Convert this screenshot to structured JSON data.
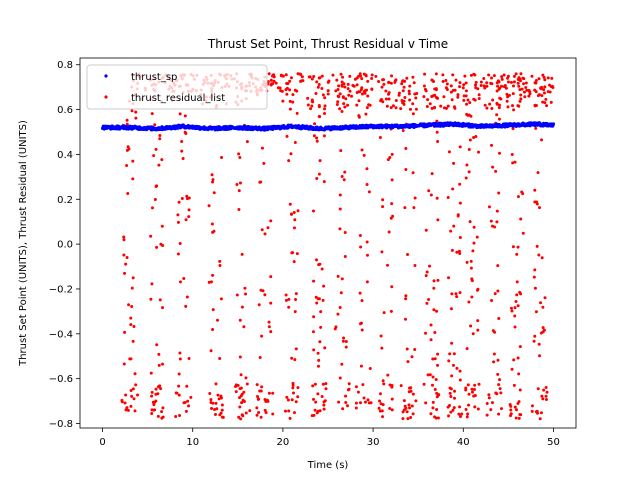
{
  "chart_data": {
    "type": "scatter",
    "title": "Thrust Set Point, Thrust Residual v Time",
    "xlabel": "Time (s)",
    "ylabel": "Thrust Set Point (UNITS), Thrust Residual (UNITS)",
    "xlim": [
      -2.5,
      52.5
    ],
    "ylim": [
      -0.82,
      0.83
    ],
    "xticks": [
      0,
      10,
      20,
      30,
      40,
      50
    ],
    "xtick_labels": [
      "0",
      "10",
      "20",
      "30",
      "40",
      "50"
    ],
    "yticks": [
      -0.8,
      -0.6,
      -0.4,
      -0.2,
      0.0,
      0.2,
      0.4,
      0.6,
      0.8
    ],
    "ytick_labels": [
      "−0.8",
      "−0.6",
      "−0.4",
      "−0.2",
      "0.0",
      "0.2",
      "0.4",
      "0.6",
      "0.8"
    ],
    "legend_position": "top-left",
    "series": [
      {
        "name": "thrust_sp",
        "color": "#0000ff",
        "marker": "dot",
        "x_range": [
          0,
          50
        ],
        "baseline": [
          [
            0,
            0.52
          ],
          [
            3,
            0.52
          ],
          [
            6,
            0.515
          ],
          [
            9,
            0.525
          ],
          [
            12,
            0.515
          ],
          [
            15,
            0.52
          ],
          [
            18,
            0.515
          ],
          [
            21,
            0.525
          ],
          [
            24,
            0.515
          ],
          [
            27,
            0.52
          ],
          [
            30,
            0.525
          ],
          [
            33,
            0.525
          ],
          [
            36,
            0.53
          ],
          [
            39,
            0.535
          ],
          [
            42,
            0.525
          ],
          [
            45,
            0.53
          ],
          [
            48,
            0.535
          ],
          [
            50,
            0.53
          ]
        ]
      },
      {
        "name": "thrust_residual_list",
        "color": "#ff0000",
        "marker": "dot",
        "x_range": [
          0,
          50
        ],
        "upper_band": [
          0.6,
          0.76
        ],
        "lower_band": [
          -0.78,
          -0.62
        ],
        "bursts": [
          3,
          6,
          9,
          12.5,
          15.5,
          18,
          21,
          24,
          26.5,
          29,
          31.5,
          34,
          36.5,
          39,
          41,
          43.5,
          46,
          48.5
        ]
      }
    ]
  }
}
